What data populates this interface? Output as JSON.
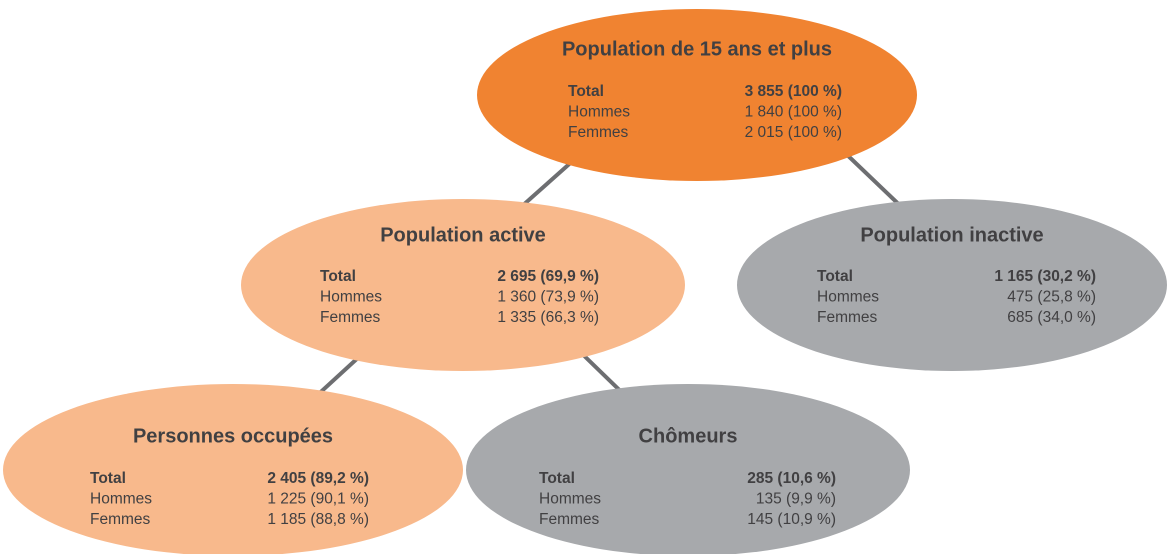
{
  "nodes": [
    {
      "title": "Population de 15 ans et plus",
      "rows": [
        [
          "Total",
          "3 855 (100 %)"
        ],
        [
          "Hommes",
          "1 840 (100 %)"
        ],
        [
          "Femmes",
          "2 015 (100 %)"
        ]
      ]
    },
    {
      "title": "Population active",
      "rows": [
        [
          "Total",
          "2 695 (69,9 %)"
        ],
        [
          "Hommes",
          "1 360 (73,9 %)"
        ],
        [
          "Femmes",
          "1 335 (66,3 %)"
        ]
      ]
    },
    {
      "title": "Population inactive",
      "rows": [
        [
          "Total",
          "1 165 (30,2 %)"
        ],
        [
          "Hommes",
          "475 (25,8 %)"
        ],
        [
          "Femmes",
          "685 (34,0 %)"
        ]
      ]
    },
    {
      "title": "Personnes occupées",
      "rows": [
        [
          "Total",
          "2 405 (89,2 %)"
        ],
        [
          "Hommes",
          "1 225 (90,1 %)"
        ],
        [
          "Femmes",
          "1 185 (88,8 %)"
        ]
      ]
    },
    {
      "title": "Chômeurs",
      "rows": [
        [
          "Total",
          "285 (10,6 %)"
        ],
        [
          "Hommes",
          "135 (9,9 %)"
        ],
        [
          "Femmes",
          "145 (10,9 %)"
        ]
      ]
    }
  ]
}
